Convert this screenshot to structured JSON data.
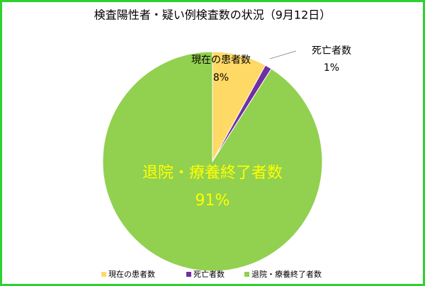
{
  "chart_data": {
    "type": "pie",
    "title": "検査陽性者・疑い例検査数の状況（9月12日）",
    "categories": [
      "現在の患者数",
      "死亡者数",
      "退院・療養終了者数"
    ],
    "values": [
      8,
      1,
      91
    ],
    "value_labels": [
      "8%",
      "1%",
      "91%"
    ],
    "colors": [
      "#ffd966",
      "#7030a0",
      "#92d050"
    ],
    "legend": "bottom"
  }
}
